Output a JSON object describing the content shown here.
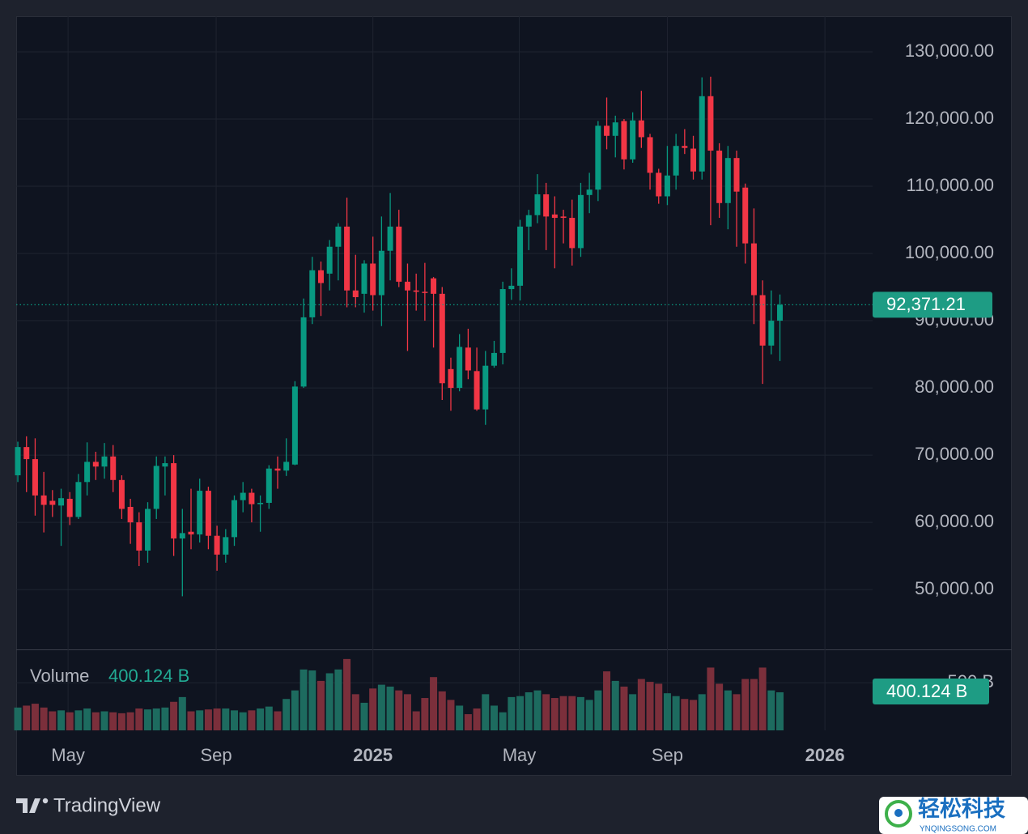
{
  "chart_data": {
    "type": "candlestick",
    "up_color": "#089981",
    "down_color": "#f23645",
    "open": [
      67000,
      71200,
      69400,
      64000,
      63200,
      62500,
      63500,
      60800,
      66000,
      69000,
      68300,
      69800,
      66300,
      62300,
      60000,
      55800,
      62000,
      68300,
      68800,
      57600,
      58600,
      58200,
      64700,
      58000,
      55200,
      57800,
      63300,
      64400,
      62700,
      62900,
      68000,
      67700,
      68600,
      80200,
      90500,
      97500,
      97000,
      101000,
      104000,
      94500,
      94000,
      98500,
      93800,
      100400,
      104000,
      95800,
      94500,
      94300,
      96300,
      94000,
      82800,
      80000,
      86000,
      82500,
      76800,
      83300,
      85200,
      94700,
      95200,
      104000,
      105700,
      108800,
      105800,
      105500,
      105300,
      100800,
      108700,
      109500,
      119000,
      117500,
      119700,
      114000,
      119800,
      117300,
      112000,
      108500,
      111600,
      116000,
      115600,
      112200,
      123400,
      115300,
      107500,
      114200,
      109800,
      101500,
      93800,
      86300,
      90000
    ],
    "high": [
      72000,
      72800,
      72500,
      67500,
      64800,
      65000,
      64500,
      67200,
      71900,
      70500,
      71800,
      71500,
      67000,
      63500,
      61500,
      63000,
      69800,
      69800,
      70000,
      62000,
      65000,
      66500,
      65300,
      59500,
      59000,
      64000,
      66000,
      65000,
      64000,
      68500,
      69800,
      72500,
      81000,
      93300,
      99500,
      98800,
      102000,
      104500,
      108300,
      99800,
      99000,
      102500,
      105500,
      109000,
      106500,
      98500,
      97000,
      98600,
      96500,
      95000,
      84500,
      88000,
      88800,
      86000,
      85500,
      87000,
      95800,
      97800,
      105000,
      106500,
      111800,
      110500,
      108500,
      106500,
      108000,
      110500,
      112000,
      119700,
      123200,
      120500,
      120000,
      121000,
      124200,
      117800,
      112600,
      116000,
      117800,
      118500,
      117500,
      126200,
      126300,
      116400,
      116000,
      115300,
      110400,
      106700,
      96000,
      94500,
      93900
    ],
    "low": [
      66000,
      64500,
      61000,
      58500,
      60800,
      56500,
      59600,
      60500,
      64000,
      66300,
      66500,
      64500,
      60500,
      56800,
      53500,
      54000,
      60500,
      64000,
      55000,
      49000,
      56000,
      57000,
      56000,
      52800,
      54000,
      56500,
      61500,
      60000,
      58600,
      62000,
      65000,
      66900,
      68500,
      80000,
      89500,
      90700,
      94500,
      96000,
      92000,
      92000,
      91200,
      91500,
      89200,
      96000,
      95000,
      85500,
      91500,
      90000,
      86000,
      78200,
      76600,
      79500,
      81300,
      76600,
      74500,
      83000,
      83500,
      93100,
      93000,
      100500,
      104500,
      100500,
      97800,
      101500,
      98200,
      99500,
      106000,
      107800,
      115500,
      114300,
      112500,
      113500,
      115700,
      109500,
      107400,
      107200,
      109500,
      114800,
      111000,
      111000,
      104200,
      105300,
      103600,
      101000,
      98500,
      89500,
      80600,
      85000,
      84000
    ],
    "close": [
      71200,
      69400,
      64000,
      62600,
      62600,
      63600,
      60800,
      66000,
      69000,
      68300,
      69800,
      66300,
      62000,
      60000,
      55800,
      62000,
      68400,
      68800,
      57600,
      58400,
      58200,
      64700,
      58000,
      55200,
      57800,
      63300,
      64400,
      62700,
      62900,
      68000,
      67700,
      69000,
      80200,
      90500,
      97500,
      95600,
      101000,
      104000,
      94500,
      93500,
      98500,
      93800,
      100400,
      104000,
      95800,
      94500,
      94300,
      94200,
      94000,
      80700,
      80000,
      86100,
      82600,
      76800,
      83300,
      85200,
      94700,
      95200,
      104000,
      105700,
      108800,
      105500,
      105300,
      105300,
      100800,
      108700,
      109500,
      119000,
      117500,
      119500,
      114000,
      119800,
      117300,
      112000,
      108500,
      111600,
      116000,
      115700,
      112200,
      123400,
      115300,
      107500,
      114200,
      109200,
      101500,
      93800,
      86300,
      90000,
      92371.21
    ],
    "xlim": [
      -0.19,
      98.7
    ],
    "xticks": [
      {
        "value": 5.8,
        "label": "May"
      },
      {
        "value": 22.9,
        "label": "Sep"
      },
      {
        "value": 41.0,
        "label": "2025"
      },
      {
        "value": 57.9,
        "label": "May"
      },
      {
        "value": 75.0,
        "label": "Sep"
      },
      {
        "value": 93.2,
        "label": "2026"
      }
    ],
    "ylim": [
      41100,
      135300
    ],
    "yticks": [
      {
        "value": 50000,
        "label": "50,000.00"
      },
      {
        "value": 60000,
        "label": "60,000.00"
      },
      {
        "value": 70000,
        "label": "70,000.00"
      },
      {
        "value": 80000,
        "label": "80,000.00"
      },
      {
        "value": 90000,
        "label": "90,000.00"
      },
      {
        "value": 100000,
        "label": "100,000.00"
      },
      {
        "value": 110000,
        "label": "110,000.00"
      },
      {
        "value": 120000,
        "label": "120,000.00"
      },
      {
        "value": 130000,
        "label": "130,000.00"
      }
    ],
    "grid": true,
    "last_price_label": "92,371.21",
    "volume": {
      "name": "Volume",
      "up_color": "#1d6b5f",
      "down_color": "#7b2f3b",
      "values": [
        240,
        260,
        280,
        240,
        200,
        210,
        190,
        210,
        230,
        190,
        200,
        190,
        180,
        190,
        230,
        220,
        230,
        240,
        300,
        350,
        200,
        210,
        220,
        230,
        230,
        210,
        190,
        210,
        230,
        250,
        200,
        330,
        420,
        640,
        630,
        520,
        600,
        640,
        750,
        380,
        290,
        440,
        480,
        460,
        420,
        380,
        200,
        340,
        560,
        410,
        320,
        260,
        170,
        230,
        380,
        260,
        190,
        350,
        360,
        400,
        420,
        380,
        340,
        360,
        360,
        350,
        320,
        420,
        620,
        520,
        460,
        380,
        540,
        510,
        490,
        390,
        360,
        330,
        320,
        380,
        660,
        490,
        420,
        380,
        540,
        540,
        660,
        420,
        400.124
      ],
      "ylim": [
        0,
        851
      ],
      "yticks": [
        {
          "value": 500,
          "label": "500 B"
        }
      ],
      "last_value_label": "400.124 B"
    }
  },
  "footer": {
    "brand": "TradingView"
  },
  "watermark": {
    "title": "轻松科技",
    "url": "YNQINGSONG.COM"
  }
}
